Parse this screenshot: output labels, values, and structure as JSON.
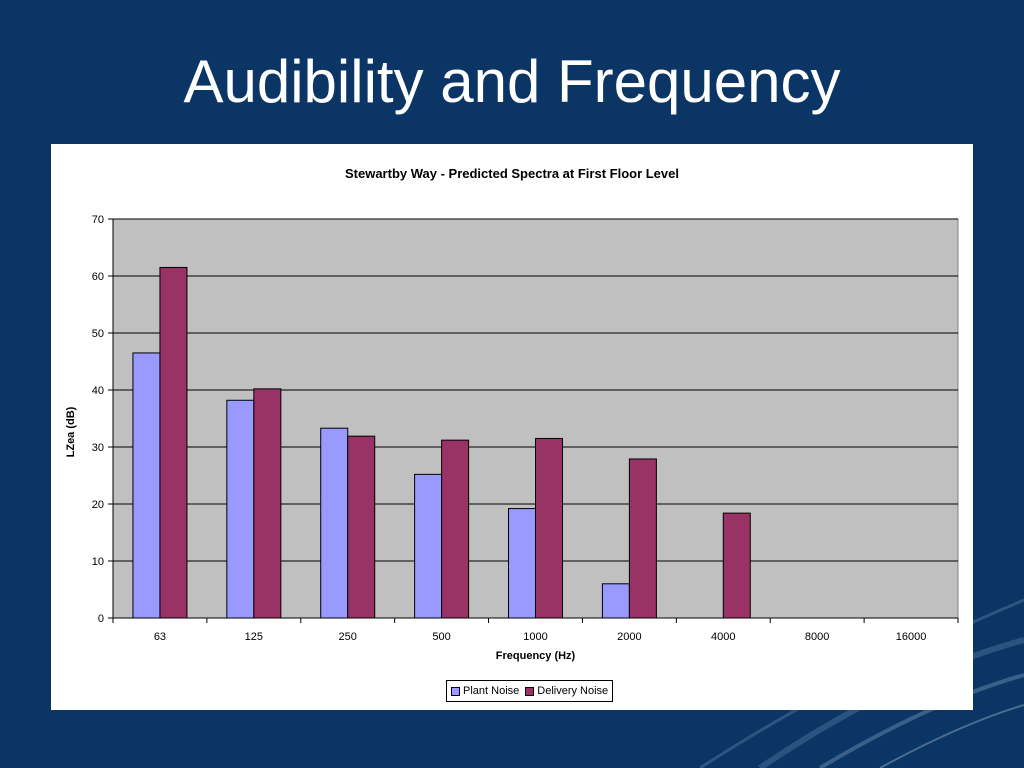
{
  "slide": {
    "title": "Audibility and Frequency"
  },
  "colors": {
    "background": "#0b3564",
    "plot_area": "#c0c0c0",
    "plant": "#9999ff",
    "delivery": "#993366"
  },
  "chart_data": {
    "type": "bar",
    "title": "Stewartby Way - Predicted Spectra at First Floor Level",
    "xlabel": "Frequency (Hz)",
    "ylabel": "LZea (dB)",
    "categories": [
      "63",
      "125",
      "250",
      "500",
      "1000",
      "2000",
      "4000",
      "8000",
      "16000"
    ],
    "series": [
      {
        "name": "Plant Noise",
        "color": "#9999ff",
        "values": [
          46.5,
          38.2,
          33.3,
          25.2,
          19.2,
          6.0,
          null,
          null,
          null
        ]
      },
      {
        "name": "Delivery Noise",
        "color": "#993366",
        "values": [
          61.5,
          40.2,
          31.9,
          31.2,
          31.5,
          27.9,
          18.4,
          null,
          null
        ]
      }
    ],
    "ylim": [
      0,
      70
    ],
    "yticks": [
      0,
      10,
      20,
      30,
      40,
      50,
      60,
      70
    ],
    "grid": true,
    "legend": "bottom-center"
  }
}
